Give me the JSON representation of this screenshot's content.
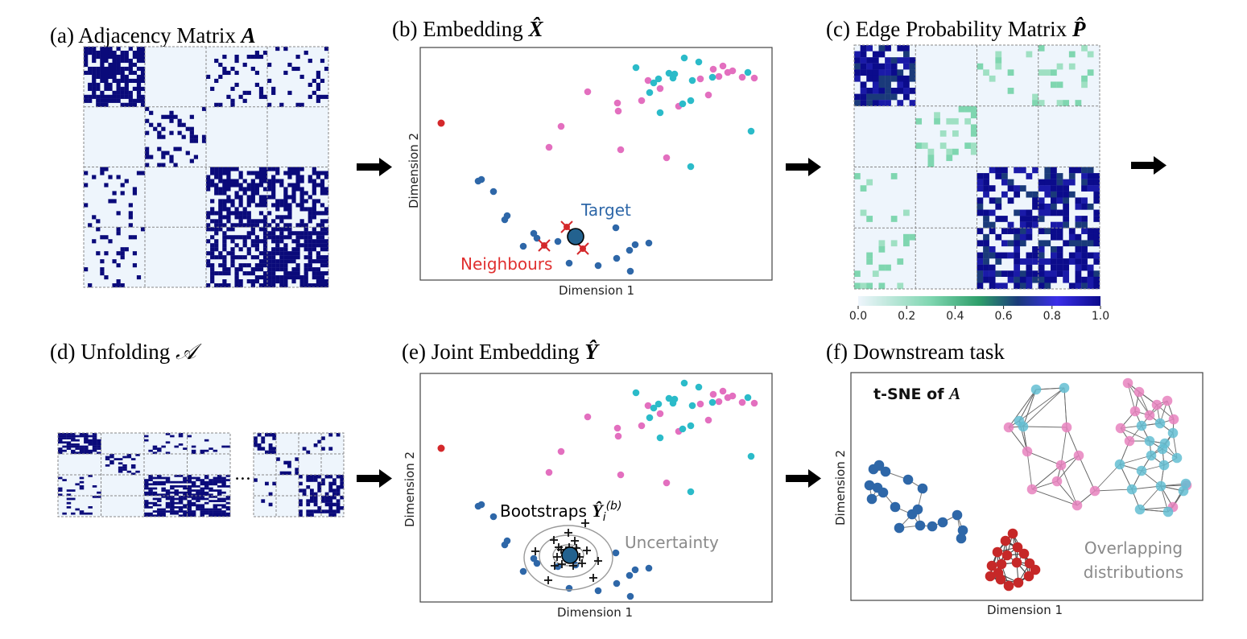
{
  "colors": {
    "matrix_bg": "#eef5fc",
    "matrix_dot": "#0a0a7a",
    "pink": "#e36fbf",
    "cyan": "#2bbbc9",
    "blue": "#2e67a8",
    "red": "#d4282b",
    "target": "#23628f",
    "neighbour_label": "#e03030",
    "target_label": "#2e67a8",
    "uncertainty": "#8a8a8a",
    "colorbar": [
      "#eef5fc",
      "#7fd6b0",
      "#2e9e6a",
      "#1a3a7a",
      "#3a2ee8",
      "#0b0b8c"
    ]
  },
  "panel_a": {
    "prefix": "(a) Adjacency Matrix ",
    "symbol": "A"
  },
  "panel_b": {
    "prefix": "(b) Embedding ",
    "symbol": "X̂",
    "xlabel": "Dimension 1",
    "ylabel": "Dimension 2",
    "target_label": "Target",
    "neighbours_label": "Neighbours"
  },
  "panel_c": {
    "prefix": "(c) Edge Probability Matrix ",
    "symbol": "P̂",
    "colorbar_ticks": [
      "0.0",
      "0.2",
      "0.4",
      "0.6",
      "0.8",
      "1.0"
    ]
  },
  "panel_d": {
    "prefix": "(d) Unfolding ",
    "symbol": "𝒜",
    "ellipsis": "•••"
  },
  "panel_e": {
    "prefix": "(e) Joint Embedding ",
    "symbol": "Ŷ",
    "xlabel": "Dimension 1",
    "ylabel": "Dimension 2",
    "bootstraps_label": "Bootstraps ",
    "bootstraps_symbol": "Ŷ",
    "bootstraps_sub": "i",
    "bootstraps_sup": "(b)",
    "uncertainty_label": "Uncertainty"
  },
  "panel_f": {
    "prefix": "(f) Downstream task",
    "tsne_prefix": "t-SNE of ",
    "tsne_symbol": "A",
    "xlabel": "Dimension 1",
    "ylabel": "Dimension 2",
    "overlap_line1": "Overlapping",
    "overlap_line2": "distributions"
  }
}
